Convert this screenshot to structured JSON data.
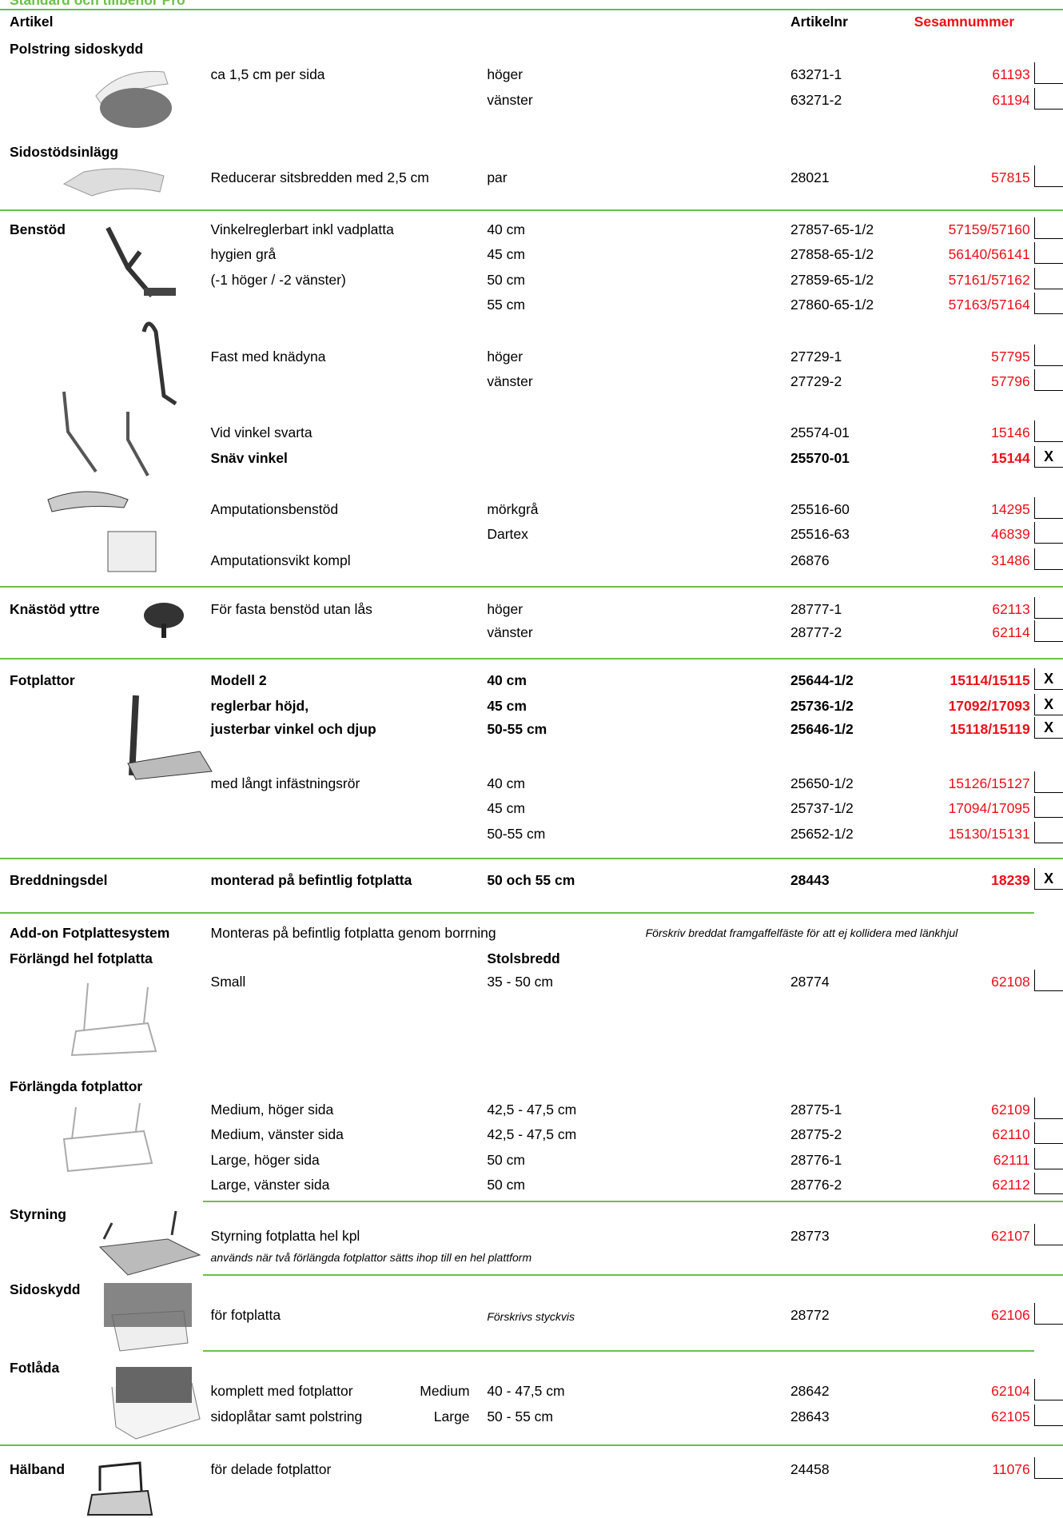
{
  "header": {
    "title": "Standard och tillbehör Pro",
    "columns": {
      "artikel": "Artikel",
      "artikelnr": "Artikelnr",
      "sesamnummer": "Sesamnummer"
    }
  },
  "sections": [
    {
      "name": "Polstring sidoskydd",
      "rows": [
        {
          "desc": "ca 1,5 cm per sida",
          "variant": "höger",
          "artnr": "63271-1",
          "sesam": "61193"
        },
        {
          "variant": "vänster",
          "artnr": "63271-2",
          "sesam": "61194"
        }
      ]
    },
    {
      "name": "Sidostödsinlägg",
      "rows": [
        {
          "desc": "Reducerar sitsbredden med 2,5 cm",
          "variant": "par",
          "artnr": "28021",
          "sesam": "57815"
        }
      ]
    },
    {
      "name": "Benstöd",
      "rows": [
        {
          "desc": "Vinkelreglerbart inkl vadplatta",
          "variant": "40 cm",
          "artnr": "27857-65-1/2",
          "sesam": "57159/57160"
        },
        {
          "desc": "hygien grå",
          "variant": "45 cm",
          "artnr": "27858-65-1/2",
          "sesam": "56140/56141"
        },
        {
          "desc": "(-1 höger / -2 vänster)",
          "variant": "50 cm",
          "artnr": "27859-65-1/2",
          "sesam": "57161/57162"
        },
        {
          "variant": "55 cm",
          "artnr": "27860-65-1/2",
          "sesam": "57163/57164"
        },
        {
          "desc": "Fast med knädyna",
          "variant": "höger",
          "artnr": "27729-1",
          "sesam": "57795"
        },
        {
          "variant": "vänster",
          "artnr": "27729-2",
          "sesam": "57796"
        },
        {
          "desc": "Vid vinkel svarta",
          "artnr": "25574-01",
          "sesam": "15146"
        },
        {
          "desc": "Snäv vinkel",
          "artnr": "25570-01",
          "sesam": "15144",
          "mark": "X"
        },
        {
          "desc": "Amputationsbenstöd",
          "variant": "mörkgrå",
          "artnr": "25516-60",
          "sesam": "14295"
        },
        {
          "variant": "Dartex",
          "artnr": "25516-63",
          "sesam": "46839"
        },
        {
          "desc": "Amputationsvikt kompl",
          "artnr": "26876",
          "sesam": "31486"
        }
      ]
    },
    {
      "name": "Knästöd yttre",
      "rows": [
        {
          "desc": "För fasta benstöd utan lås",
          "variant": "höger",
          "artnr": "28777-1",
          "sesam": "62113"
        },
        {
          "variant": "vänster",
          "artnr": "28777-2",
          "sesam": "62114"
        }
      ]
    },
    {
      "name": "Fotplattor",
      "rows": [
        {
          "desc": "Modell 2",
          "variant": "40 cm",
          "artnr": "25644-1/2",
          "sesam": "15114/15115",
          "mark": "X"
        },
        {
          "desc": "reglerbar höjd,",
          "variant": "45 cm",
          "artnr": "25736-1/2",
          "sesam": "17092/17093",
          "mark": "X"
        },
        {
          "desc": "justerbar vinkel och djup",
          "variant": "50-55 cm",
          "artnr": "25646-1/2",
          "sesam": "15118/15119",
          "mark": "X"
        },
        {
          "desc": "med långt infästningsrör",
          "variant": "40 cm",
          "artnr": "25650-1/2",
          "sesam": "15126/15127"
        },
        {
          "variant": "45 cm",
          "artnr": "25737-1/2",
          "sesam": "17094/17095"
        },
        {
          "variant": "50-55 cm",
          "artnr": "25652-1/2",
          "sesam": "15130/15131"
        }
      ]
    },
    {
      "name": "Breddningsdel",
      "rows": [
        {
          "desc": "monterad på befintlig fotplatta",
          "variant": "50 och 55 cm",
          "artnr": "28443",
          "sesam": "18239",
          "mark": "X"
        }
      ]
    },
    {
      "name": "Add-on Fotplattesystem",
      "rows": [
        {
          "desc": "Monteras på befintlig fotplatta genom borrning",
          "note": "Förskriv breddat framgaffelfäste för att ej kollidera med länkhjul"
        }
      ]
    },
    {
      "name": "Förlängd hel fotplatta",
      "subheader": "Stolsbredd",
      "rows": [
        {
          "desc": "Small",
          "variant": "35 - 50 cm",
          "artnr": "28774",
          "sesam": "62108"
        }
      ]
    },
    {
      "name": "Förlängda fotplattor",
      "rows": [
        {
          "desc": "Medium, höger sida",
          "variant": "42,5 - 47,5 cm",
          "artnr": "28775-1",
          "sesam": "62109"
        },
        {
          "desc": "Medium, vänster sida",
          "variant": "42,5 - 47,5 cm",
          "artnr": "28775-2",
          "sesam": "62110"
        },
        {
          "desc": "Large, höger sida",
          "variant": "50 cm",
          "artnr": "28776-1",
          "sesam": "62111"
        },
        {
          "desc": "Large, vänster sida",
          "variant": "50 cm",
          "artnr": "28776-2",
          "sesam": "62112"
        }
      ]
    },
    {
      "name": "Styrning",
      "rows": [
        {
          "desc": "Styrning fotplatta hel kpl",
          "artnr": "28773",
          "sesam": "62107",
          "subnote": "används när två förlängda fotplattor sätts ihop till en hel plattform"
        }
      ]
    },
    {
      "name": "Sidoskydd",
      "rows": [
        {
          "desc": "för fotplatta",
          "remark": "Förskrivs styckvis",
          "artnr": "28772",
          "sesam": "62106"
        }
      ]
    },
    {
      "name": "Fotlåda",
      "rows": [
        {
          "desc": "komplett med fotplattor",
          "size": "Medium",
          "variant": "40 - 47,5 cm",
          "artnr": "28642",
          "sesam": "62104"
        },
        {
          "desc": "sidoplåtar samt polstring",
          "size": "Large",
          "variant": "50 - 55 cm",
          "artnr": "28643",
          "sesam": "62105"
        }
      ]
    },
    {
      "name": "Hälband",
      "rows": [
        {
          "desc": "för delade fotplattor",
          "artnr": "24458",
          "sesam": "11076"
        }
      ]
    }
  ]
}
